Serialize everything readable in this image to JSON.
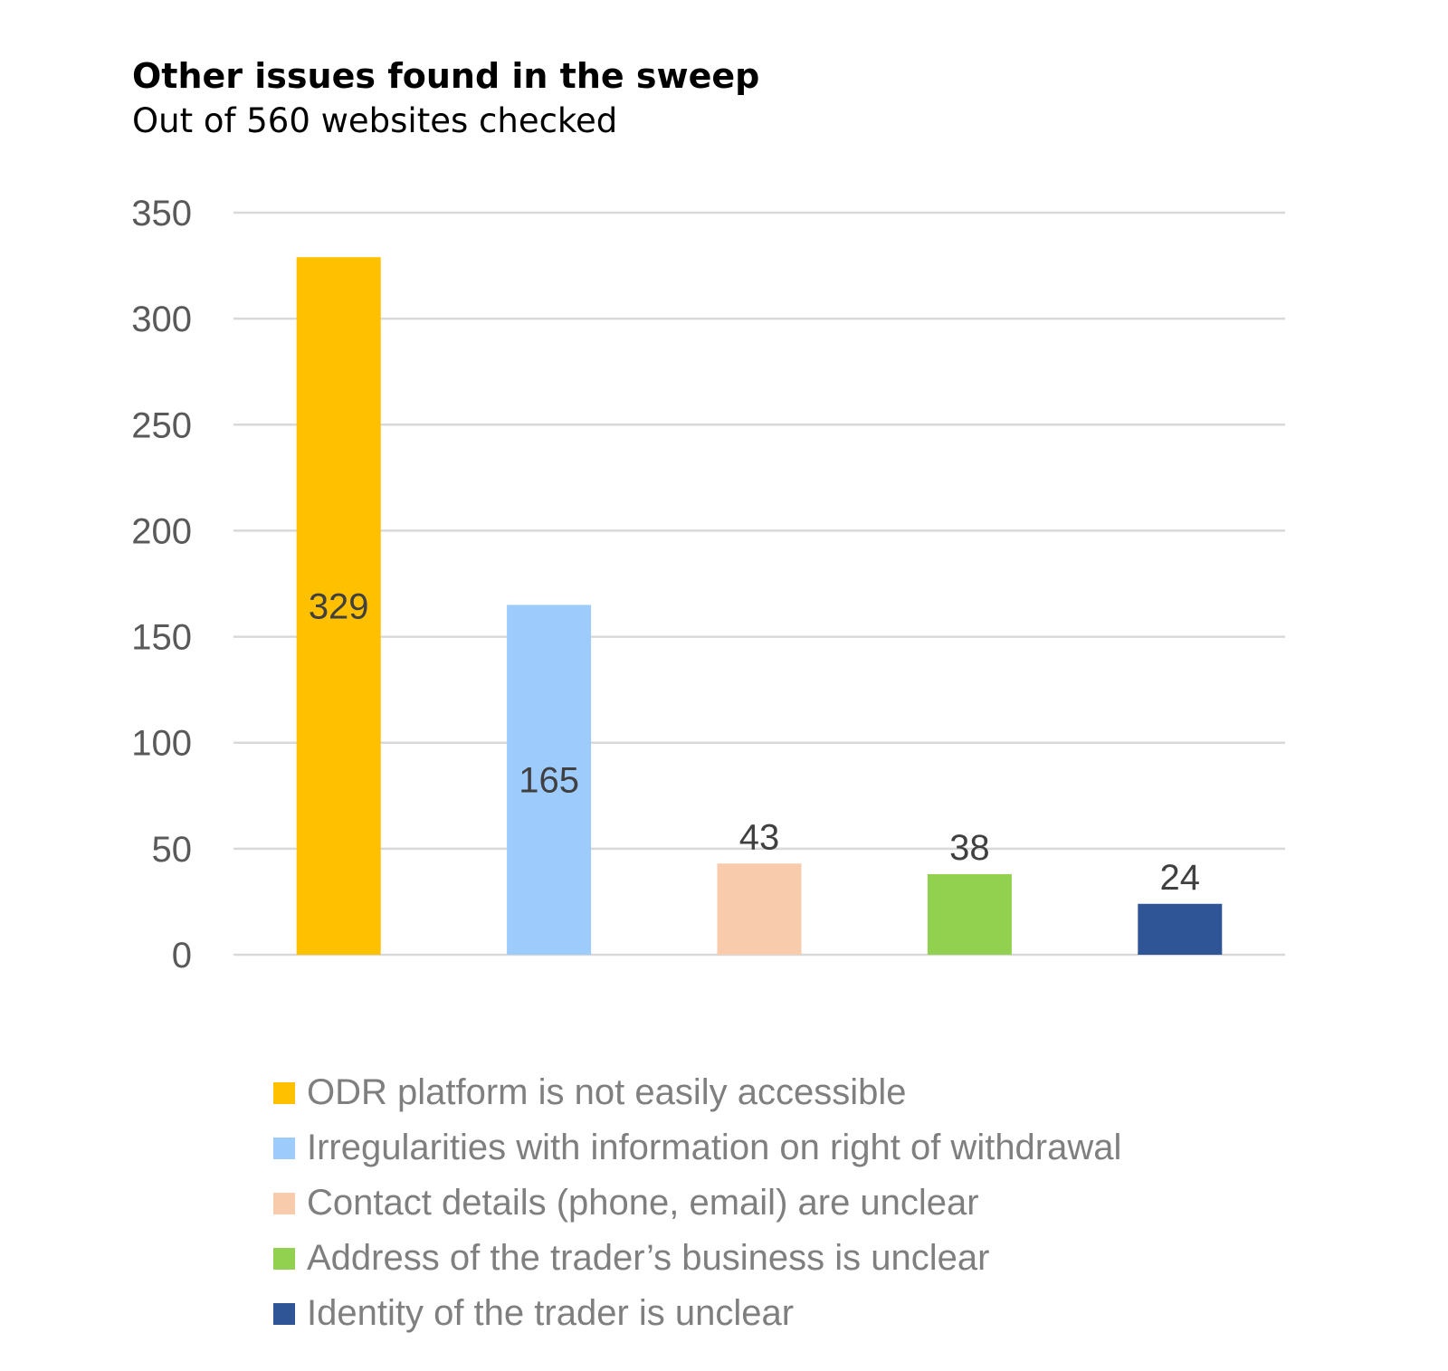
{
  "chart_data": {
    "type": "bar",
    "title": "Other issues found in the sweep",
    "subtitle": "Out of 560 websites checked",
    "categories": [
      "ODR platform is not easily accessible",
      "Irregularities with information on right of withdrawal",
      "Contact details (phone, email) are unclear",
      "Address of the trader’s business is unclear",
      "Identity of the trader is unclear"
    ],
    "values": [
      329,
      165,
      43,
      38,
      24
    ],
    "colors": [
      "#ffc000",
      "#9dcbfb",
      "#f8cbad",
      "#92d050",
      "#2f5597"
    ],
    "ylim": [
      0,
      350
    ],
    "yticks": [
      0,
      50,
      100,
      150,
      200,
      250,
      300,
      350
    ],
    "grid": true,
    "legend_position": "bottom",
    "data_labels": true
  }
}
